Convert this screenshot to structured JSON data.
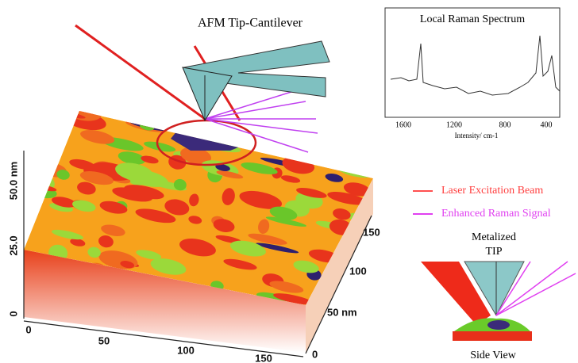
{
  "labels": {
    "cantilever": "AFM Tip-Cantilever",
    "side_view": "Side View",
    "tip": [
      "Metalized",
      "TIP"
    ]
  },
  "spectrum": {
    "title": "Local Raman Spectrum",
    "xticks": [
      "1600",
      "1200",
      "800",
      "400"
    ],
    "xlabel": "Intensity/ cm-1"
  },
  "legend": [
    "Laser Excitation Beam",
    "Enhanced Raman Signal"
  ],
  "surface_axes": {
    "z": [
      "50.0 nm",
      "25.0",
      "0"
    ],
    "x": [
      "0",
      "50",
      "100",
      "150"
    ],
    "y": [
      "0",
      "50 nm",
      "100",
      "150"
    ]
  }
}
